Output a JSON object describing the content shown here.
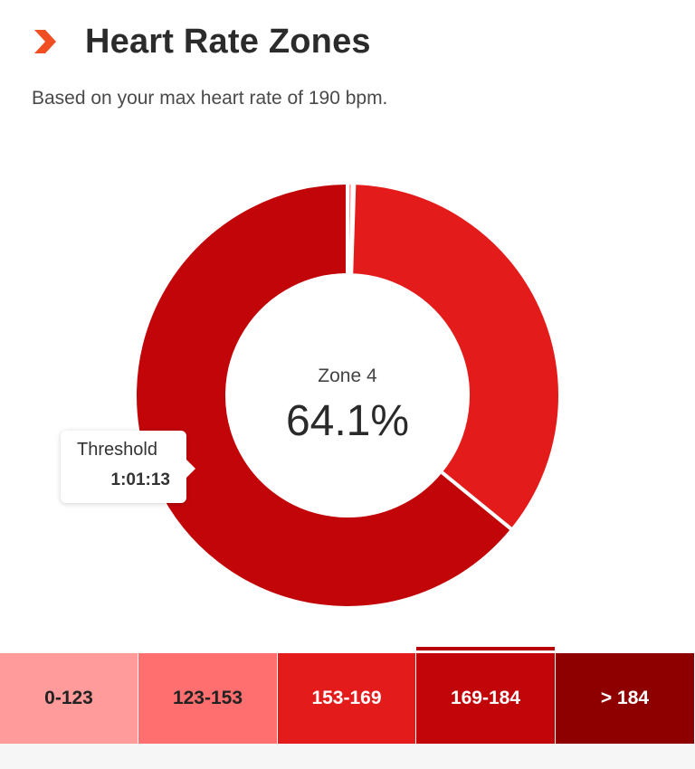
{
  "header": {
    "title": "Heart Rate Zones",
    "subtitle": "Based on your max heart rate of 190 bpm."
  },
  "colors": {
    "accent": "#f04e23",
    "zone1": "#ff9b9b",
    "zone2": "#ff6f6f",
    "zone3": "#e41b1b",
    "zone4": "#c20508",
    "zone5": "#8e0000"
  },
  "chart_data": {
    "type": "pie",
    "center_label": "Zone 4",
    "center_value": "64.1%",
    "slices": [
      {
        "zone": "0-123",
        "percent": 0.4,
        "color": "#ff9b9b"
      },
      {
        "zone": "123-153",
        "percent": 0.1,
        "color": "#ff6f6f"
      },
      {
        "zone": "153-169",
        "percent": 35.4,
        "color": "#e41b1b"
      },
      {
        "zone": "169-184",
        "percent": 64.1,
        "color": "#c20508"
      }
    ],
    "tooltip": {
      "name": "Threshold",
      "time": "1:01:13"
    }
  },
  "zones": [
    {
      "label": "0-123",
      "color": "#ff9b9b",
      "text_color": "#222222",
      "selected": false
    },
    {
      "label": "123-153",
      "color": "#ff6f6f",
      "text_color": "#222222",
      "selected": false
    },
    {
      "label": "153-169",
      "color": "#e41b1b",
      "text_color": "#ffffff",
      "selected": false
    },
    {
      "label": "169-184",
      "color": "#c20508",
      "text_color": "#ffffff",
      "selected": true
    },
    {
      "label": "> 184",
      "color": "#8e0000",
      "text_color": "#ffffff",
      "selected": false
    }
  ]
}
